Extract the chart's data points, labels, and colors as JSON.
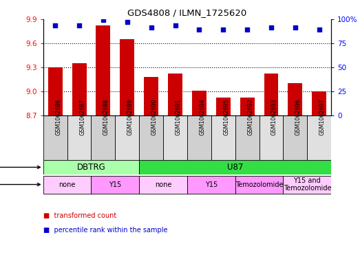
{
  "title": "GDS4808 / ILMN_1725620",
  "samples": [
    "GSM1062686",
    "GSM1062687",
    "GSM1062688",
    "GSM1062689",
    "GSM1062690",
    "GSM1062691",
    "GSM1062694",
    "GSM1062695",
    "GSM1062692",
    "GSM1062693",
    "GSM1062696",
    "GSM1062697"
  ],
  "bar_values": [
    9.3,
    9.35,
    9.82,
    9.65,
    9.18,
    9.22,
    9.01,
    8.92,
    8.92,
    9.22,
    9.1,
    9.0
  ],
  "percentile_values": [
    93,
    93,
    99,
    97,
    91,
    93,
    89,
    89,
    89,
    91,
    91,
    89
  ],
  "ylim_left": [
    8.7,
    9.9
  ],
  "ylim_right": [
    0,
    100
  ],
  "yticks_left": [
    8.7,
    9.0,
    9.3,
    9.6,
    9.9
  ],
  "yticks_right": [
    0,
    25,
    50,
    75,
    100
  ],
  "bar_color": "#cc0000",
  "dot_color": "#0000cc",
  "cell_line_groups": [
    {
      "label": "DBTRG",
      "start": 0,
      "end": 4,
      "color": "#aaffaa"
    },
    {
      "label": "U87",
      "start": 4,
      "end": 12,
      "color": "#33dd44"
    }
  ],
  "agent_groups": [
    {
      "label": "none",
      "start": 0,
      "end": 2,
      "color": "#ffccff"
    },
    {
      "label": "Y15",
      "start": 2,
      "end": 4,
      "color": "#ff99ff"
    },
    {
      "label": "none",
      "start": 4,
      "end": 6,
      "color": "#ffccff"
    },
    {
      "label": "Y15",
      "start": 6,
      "end": 8,
      "color": "#ff99ff"
    },
    {
      "label": "Temozolomide",
      "start": 8,
      "end": 10,
      "color": "#ff99ff"
    },
    {
      "label": "Y15 and\nTemozolomide",
      "start": 10,
      "end": 12,
      "color": "#ffccff"
    }
  ],
  "sample_col_colors": [
    "#d0d0d0",
    "#e0e0e0",
    "#d0d0d0",
    "#e0e0e0",
    "#d0d0d0",
    "#e0e0e0",
    "#d0d0d0",
    "#e0e0e0",
    "#d0d0d0",
    "#e0e0e0",
    "#d0d0d0",
    "#e0e0e0"
  ],
  "legend_items": [
    {
      "label": "transformed count",
      "color": "#cc0000"
    },
    {
      "label": "percentile rank within the sample",
      "color": "#0000cc"
    }
  ]
}
